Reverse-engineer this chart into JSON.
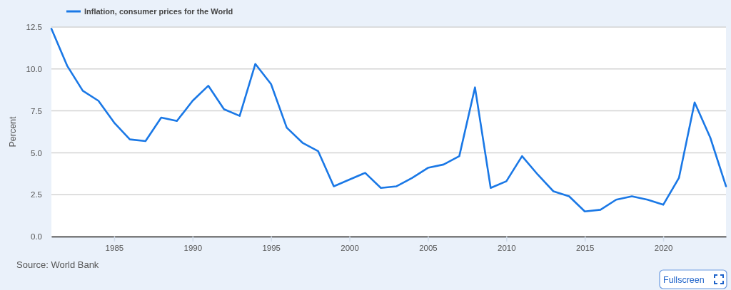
{
  "chart_data": {
    "type": "line",
    "ylabel": "Percent",
    "x": [
      1981,
      1982,
      1983,
      1984,
      1985,
      1986,
      1987,
      1988,
      1989,
      1990,
      1991,
      1992,
      1993,
      1994,
      1995,
      1996,
      1997,
      1998,
      1999,
      2000,
      2001,
      2002,
      2003,
      2004,
      2005,
      2006,
      2007,
      2008,
      2009,
      2010,
      2011,
      2012,
      2013,
      2014,
      2015,
      2016,
      2017,
      2018,
      2019,
      2020,
      2021,
      2022,
      2023,
      2024
    ],
    "series": [
      {
        "name": "Inflation, consumer prices for the World",
        "color": "#1a78e6",
        "values": [
          12.4,
          10.2,
          8.7,
          8.1,
          6.8,
          5.8,
          5.7,
          7.1,
          6.9,
          8.1,
          9.0,
          7.6,
          7.2,
          10.3,
          9.1,
          6.5,
          5.6,
          5.1,
          3.0,
          3.4,
          3.8,
          2.9,
          3.0,
          3.5,
          4.1,
          4.3,
          4.8,
          8.9,
          2.9,
          3.3,
          4.8,
          3.7,
          2.7,
          2.4,
          1.5,
          1.6,
          2.2,
          2.4,
          2.2,
          1.9,
          3.5,
          8.0,
          5.9,
          3.0
        ]
      }
    ],
    "xlim": [
      1981,
      2024
    ],
    "xticks": [
      1985,
      1990,
      1995,
      2000,
      2005,
      2010,
      2015,
      2020
    ],
    "ylim": [
      0,
      12.5
    ],
    "yticks": [
      {
        "value": 0,
        "label": "0.0"
      },
      2.5,
      {
        "value": 5,
        "label": "5.0"
      },
      7.5,
      {
        "value": 10,
        "label": "10.0"
      },
      12.5
    ],
    "grid": "y",
    "legend": "top left",
    "annotations": [
      "Source: World Bank",
      "Fullscreen"
    ]
  }
}
